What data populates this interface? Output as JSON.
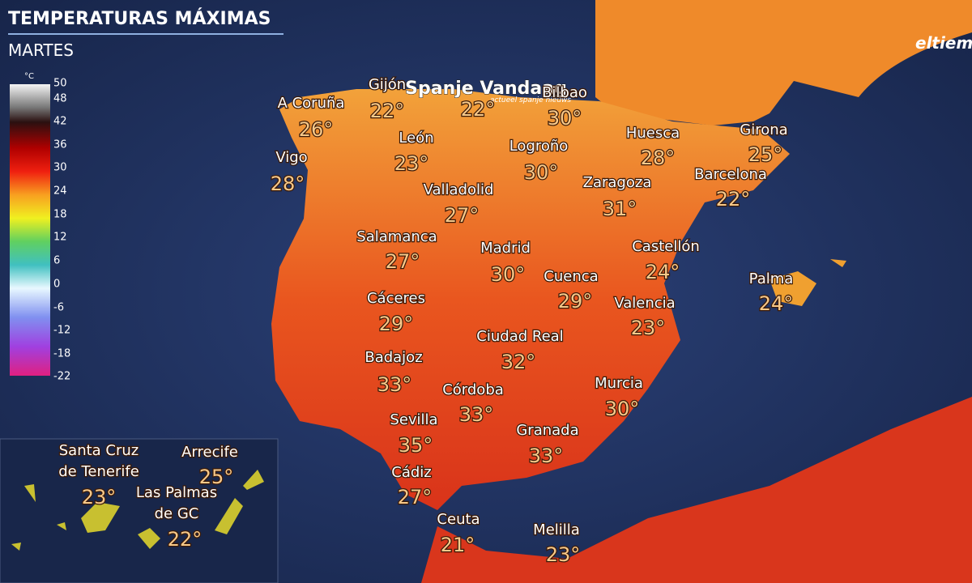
{
  "header": {
    "title": "TEMPERATURAS MÁXIMAS",
    "subtitle": "MARTES",
    "brand": "eltiem",
    "watermark": "Spanje Vandaag",
    "watermark_sub": "actueel spanje nieuws"
  },
  "legend": {
    "unit": "°C",
    "ticks": [
      "50",
      "48",
      "42",
      "36",
      "30",
      "24",
      "18",
      "12",
      "6",
      "0",
      "-6",
      "-12",
      "-18",
      "-22"
    ]
  },
  "cities": [
    {
      "name": [
        "A Coruña"
      ],
      "temp": "26°"
    },
    {
      "name": [
        "Gijón"
      ],
      "temp": "22°"
    },
    {
      "temp": "22°"
    },
    {
      "name": [
        "Bilbao"
      ],
      "temp": "30°"
    },
    {
      "name": [
        "León"
      ],
      "temp": "23°"
    },
    {
      "name": [
        "Logroño"
      ],
      "temp": "30°"
    },
    {
      "name": [
        "Huesca"
      ],
      "temp": "28°"
    },
    {
      "name": [
        "Girona"
      ],
      "temp": "25°"
    },
    {
      "name": [
        "Vigo"
      ],
      "temp": "28°"
    },
    {
      "name": [
        "Barcelona"
      ],
      "temp": "22°"
    },
    {
      "name": [
        "Valladolid"
      ],
      "temp": "27°"
    },
    {
      "name": [
        "Zaragoza"
      ],
      "temp": "31°"
    },
    {
      "name": [
        "Salamanca"
      ],
      "temp": "27°"
    },
    {
      "name": [
        "Madrid"
      ],
      "temp": "30°"
    },
    {
      "name": [
        "Castellón"
      ],
      "temp": "24°"
    },
    {
      "name": [
        "Cuenca"
      ],
      "temp": "29°"
    },
    {
      "name": [
        "Palma"
      ],
      "temp": "24°"
    },
    {
      "name": [
        "Cáceres"
      ],
      "temp": "29°"
    },
    {
      "name": [
        "Valencia"
      ],
      "temp": "23°"
    },
    {
      "name": [
        "Ciudad Real"
      ],
      "temp": "32°"
    },
    {
      "name": [
        "Badajoz"
      ],
      "temp": "33°"
    },
    {
      "name": [
        "Murcia"
      ],
      "temp": "30°"
    },
    {
      "name": [
        "Córdoba"
      ],
      "temp": "33°"
    },
    {
      "name": [
        "Sevilla"
      ],
      "temp": "35°"
    },
    {
      "name": [
        "Granada"
      ],
      "temp": "33°"
    },
    {
      "name": [
        "Cádiz"
      ],
      "temp": "27°"
    },
    {
      "name": [
        "Ceuta"
      ],
      "temp": "21°"
    },
    {
      "name": [
        "Melilla"
      ],
      "temp": "23°"
    },
    {
      "name": [
        "Santa Cruz",
        "de Tenerife"
      ],
      "temp": "23°"
    },
    {
      "name": [
        "Arrecife"
      ],
      "temp": "25°"
    },
    {
      "name": [
        "Las Palmas",
        "de GC"
      ],
      "temp": "22°"
    }
  ]
}
